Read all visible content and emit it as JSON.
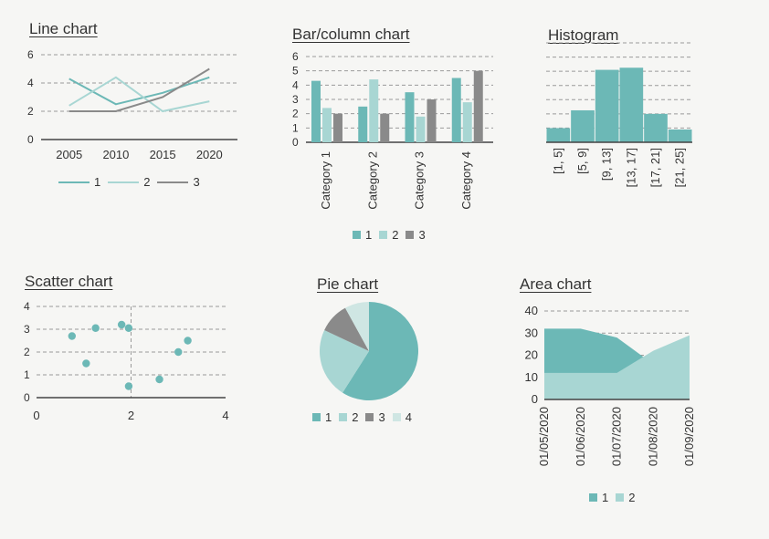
{
  "colors": {
    "s1": "#6cb8b6",
    "s2": "#a8d6d3",
    "s3": "#8a8a8a",
    "s4": "#cfe6e3",
    "axis": "#444444",
    "grid": "#9a9a9a",
    "text": "#333333"
  },
  "chart_data": [
    {
      "id": "line",
      "type": "line",
      "title": "Line chart",
      "x": [
        2005,
        2010,
        2015,
        2020
      ],
      "xlim": [
        2002,
        2023
      ],
      "ylim": [
        0,
        6
      ],
      "yticks": [
        "0",
        "2",
        "4",
        "6"
      ],
      "xticks": [
        "2005",
        "2010",
        "2015",
        "2020"
      ],
      "grid": true,
      "legend": "bottom",
      "series": [
        {
          "name": "1",
          "values": [
            4.3,
            2.5,
            3.3,
            4.4
          ]
        },
        {
          "name": "2",
          "values": [
            2.4,
            4.4,
            2.0,
            2.7
          ]
        },
        {
          "name": "3",
          "values": [
            2.0,
            2.0,
            3.0,
            5.0
          ]
        }
      ]
    },
    {
      "id": "bar",
      "type": "bar",
      "title": "Bar/column chart",
      "categories": [
        "Category 1",
        "Category 2",
        "Category 3",
        "Category 4"
      ],
      "ylim": [
        0,
        6
      ],
      "yticks": [
        "0",
        "1",
        "2",
        "3",
        "4",
        "5",
        "6"
      ],
      "grid": true,
      "legend": "bottom",
      "series": [
        {
          "name": "1",
          "values": [
            4.3,
            2.5,
            3.5,
            4.5
          ]
        },
        {
          "name": "2",
          "values": [
            2.4,
            4.4,
            1.8,
            2.8
          ]
        },
        {
          "name": "3",
          "values": [
            2.0,
            2.0,
            3.0,
            5.0
          ]
        }
      ]
    },
    {
      "id": "hist",
      "type": "bar",
      "title": "Histogram",
      "categories": [
        "[1, 5]",
        "[5, 9]",
        "[9, 13]",
        "[13, 17]",
        "[17, 21]",
        "[21, 25]"
      ],
      "values": [
        2,
        4.5,
        10.2,
        10.5,
        4,
        1.8
      ],
      "ylim": [
        0,
        14
      ],
      "grid": true
    },
    {
      "id": "scatter",
      "type": "scatter",
      "title": "Scatter chart",
      "xlim": [
        0,
        4
      ],
      "ylim": [
        0,
        4
      ],
      "xticks": [
        "0",
        "2",
        "4"
      ],
      "yticks": [
        "0",
        "1",
        "2",
        "3",
        "4"
      ],
      "grid": true,
      "points": [
        {
          "x": 0.75,
          "y": 2.7
        },
        {
          "x": 1.05,
          "y": 1.5
        },
        {
          "x": 1.25,
          "y": 3.05
        },
        {
          "x": 1.8,
          "y": 3.2
        },
        {
          "x": 1.95,
          "y": 3.05
        },
        {
          "x": 1.95,
          "y": 0.5
        },
        {
          "x": 2.6,
          "y": 0.8
        },
        {
          "x": 3.0,
          "y": 2.0
        },
        {
          "x": 3.2,
          "y": 2.5
        }
      ]
    },
    {
      "id": "pie",
      "type": "pie",
      "title": "Pie chart",
      "legend": "bottom",
      "slices": [
        {
          "name": "1",
          "value": 59
        },
        {
          "name": "2",
          "value": 23
        },
        {
          "name": "3",
          "value": 10
        },
        {
          "name": "4",
          "value": 8
        }
      ]
    },
    {
      "id": "area",
      "type": "area",
      "title": "Area chart",
      "categories": [
        "01/05/2020",
        "01/06/2020",
        "01/07/2020",
        "01/08/2020",
        "01/09/2020"
      ],
      "ylim": [
        0,
        40
      ],
      "yticks": [
        "0",
        "10",
        "20",
        "30",
        "40"
      ],
      "grid": true,
      "legend": "bottom",
      "series": [
        {
          "name": "1",
          "values": [
            32,
            32,
            28,
            16,
            18
          ]
        },
        {
          "name": "2",
          "values": [
            12,
            12,
            12,
            22,
            29
          ]
        }
      ]
    }
  ]
}
